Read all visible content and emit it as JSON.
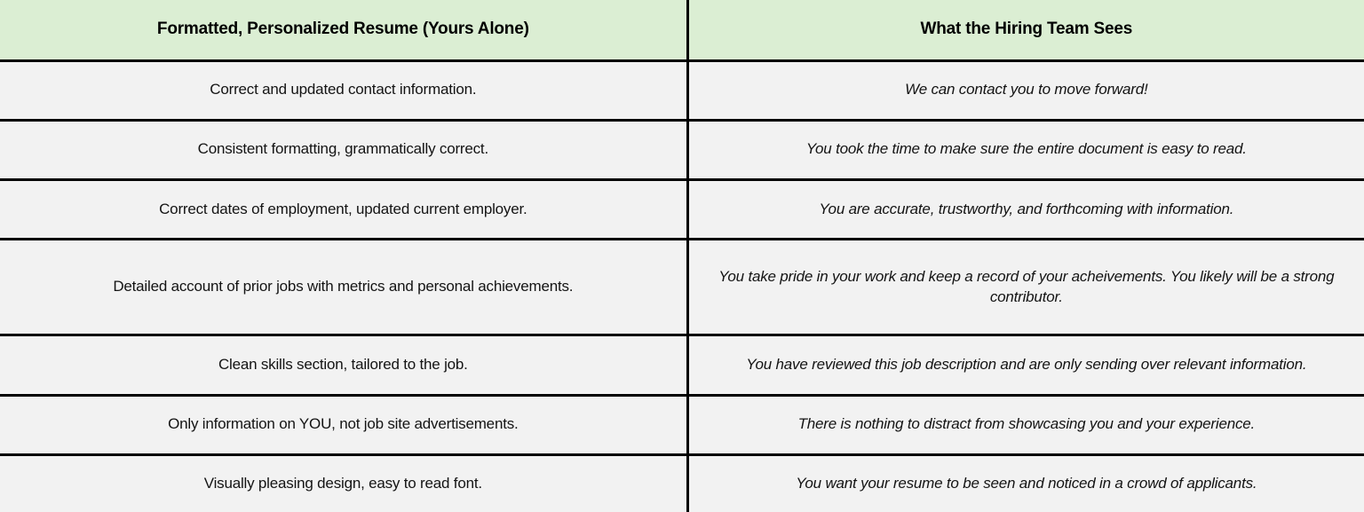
{
  "table": {
    "headers": [
      {
        "label": "Formatted, Personalized Resume (Yours Alone)"
      },
      {
        "label": "What the Hiring Team Sees"
      }
    ],
    "rows": [
      {
        "left": "Correct and updated contact information.",
        "right": "We can contact you to move forward!"
      },
      {
        "left": "Consistent formatting, grammatically correct.",
        "right": "You took the time to make sure the entire document is easy to read."
      },
      {
        "left": "Correct dates of employment, updated current employer.",
        "right": "You are accurate, trustworthy, and forthcoming with information."
      },
      {
        "left": "Detailed account of prior jobs with metrics and personal achievements.",
        "right": "You take pride in your work and keep a record of your acheivements. You likely will be a strong contributor."
      },
      {
        "left": "Clean skills section, tailored to the job.",
        "right": "You have reviewed this job description and are only sending over relevant information."
      },
      {
        "left": "Only information on YOU, not job site advertisements.",
        "right": "There is nothing to distract from showcasing you and your experience."
      },
      {
        "left": "Visually pleasing design, easy to read font.",
        "right": "You want your resume to be seen and noticed in a crowd of applicants."
      }
    ]
  },
  "colors": {
    "header_bg": "#dbeed3",
    "row_bg": "#f2f2f2",
    "border": "#000000",
    "text": "#141414"
  }
}
